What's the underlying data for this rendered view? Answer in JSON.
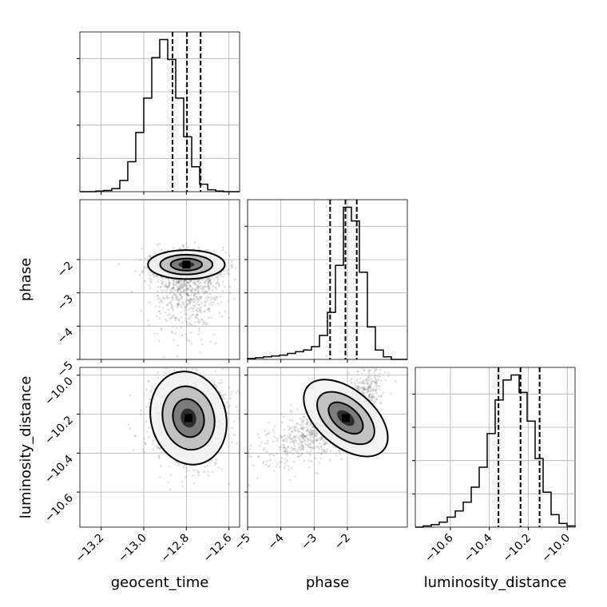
{
  "chart_data": {
    "type": "corner",
    "parameters": [
      "geocent_time",
      "phase",
      "luminosity_distance"
    ],
    "ranges": {
      "geocent_time": [
        -13.3,
        -12.55
      ],
      "phase": [
        -5.0,
        -0.2
      ],
      "luminosity_distance": [
        -10.78,
        -9.96
      ]
    },
    "ticks": {
      "geocent_time": [
        -13.2,
        -13.0,
        -12.8,
        -12.6
      ],
      "phase": [
        -5,
        -4,
        -3,
        -2
      ],
      "luminosity_distance": [
        -10.6,
        -10.4,
        -10.2,
        -10.0
      ]
    },
    "tick_labels": {
      "geocent_time": [
        "−13.2",
        "−13.0",
        "−12.8",
        "−12.6"
      ],
      "phase": [
        "−5",
        "−4",
        "−3",
        "−2"
      ],
      "luminosity_distance": [
        "−10.6",
        "−10.4",
        "−10.2",
        "−10.0"
      ]
    },
    "histograms": [
      {
        "parameter": "geocent_time",
        "bin_edges": [
          -13.3,
          -13.2625,
          -13.225,
          -13.1875,
          -13.15,
          -13.1125,
          -13.075,
          -13.0375,
          -13.0,
          -12.9625,
          -12.925,
          -12.8875,
          -12.85,
          -12.8125,
          -12.775,
          -12.7375,
          -12.7,
          -12.6625,
          -12.625,
          -12.5875,
          -12.55
        ],
        "counts": [
          0,
          0,
          1,
          2,
          5,
          18,
          48,
          95,
          150,
          215,
          244,
          212,
          150,
          88,
          40,
          12,
          3,
          1,
          0,
          0
        ],
        "quantiles": [
          -12.865,
          -12.797,
          -12.733
        ]
      },
      {
        "parameter": "phase",
        "bin_edges": [
          -5.0,
          -4.76,
          -4.52,
          -4.28,
          -4.04,
          -3.8,
          -3.56,
          -3.32,
          -3.08,
          -2.84,
          -2.6,
          -2.36,
          -2.12,
          -1.88,
          -1.64,
          -1.4,
          -1.16,
          -0.92,
          -0.68,
          -0.44,
          -0.2
        ],
        "counts": [
          1,
          2,
          3,
          4,
          5,
          7,
          9,
          11,
          15,
          28,
          55,
          110,
          178,
          162,
          102,
          38,
          11,
          3,
          0,
          0
        ],
        "quantiles": [
          -2.52,
          -2.06,
          -1.72
        ]
      },
      {
        "parameter": "luminosity_distance",
        "bin_edges": [
          -10.78,
          -10.739,
          -10.698,
          -10.657,
          -10.616,
          -10.575,
          -10.534,
          -10.493,
          -10.452,
          -10.411,
          -10.37,
          -10.329,
          -10.288,
          -10.247,
          -10.206,
          -10.165,
          -10.124,
          -10.083,
          -10.042,
          -10.001,
          -9.96
        ],
        "counts": [
          0,
          1,
          2,
          4,
          8,
          13,
          20,
          32,
          48,
          75,
          102,
          118,
          122,
          108,
          85,
          55,
          28,
          10,
          3,
          1
        ],
        "quantiles": [
          -10.353,
          -10.24,
          -10.142
        ]
      }
    ],
    "joint": [
      {
        "x": "geocent_time",
        "y": "phase",
        "peak": [
          -12.8,
          -2.15
        ],
        "spread": [
          0.082,
          0.62
        ],
        "skew": "tail toward low phase"
      },
      {
        "x": "geocent_time",
        "y": "luminosity_distance",
        "peak": [
          -12.79,
          -10.22
        ],
        "spread": [
          0.08,
          0.11
        ]
      },
      {
        "x": "phase",
        "y": "luminosity_distance",
        "peak": [
          -2.05,
          -10.22
        ],
        "spread": [
          0.7,
          0.11
        ],
        "correlation": "positive"
      }
    ],
    "xlabel": [
      "geocent_time",
      "phase",
      "luminosity_distance"
    ],
    "ylabel": [
      "phase",
      "luminosity_distance"
    ],
    "grid": true
  }
}
